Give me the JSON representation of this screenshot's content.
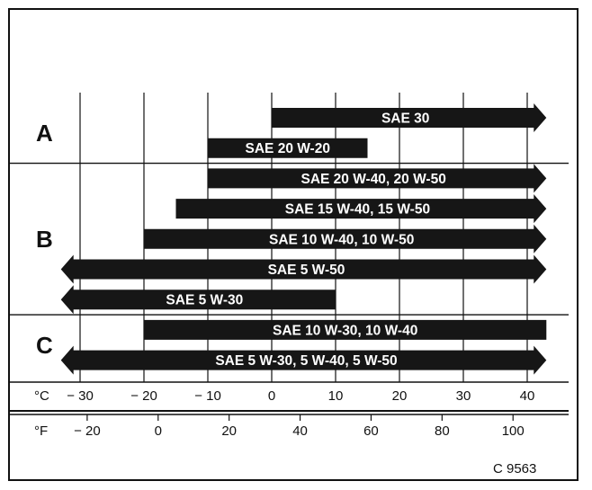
{
  "chart_data": {
    "type": "bar",
    "orientation": "horizontal-range",
    "x_unit": "°C",
    "x_unit_secondary": "°F",
    "xlim": [
      -35,
      45
    ],
    "celsius_ticks": [
      {
        "value": -30,
        "label": "− 30"
      },
      {
        "value": -20,
        "label": "− 20"
      },
      {
        "value": -10,
        "label": "− 10"
      },
      {
        "value": 0,
        "label": "0"
      },
      {
        "value": 10,
        "label": "10"
      },
      {
        "value": 20,
        "label": "20"
      },
      {
        "value": 30,
        "label": "30"
      },
      {
        "value": 40,
        "label": "40"
      }
    ],
    "fahrenheit_ticks": [
      {
        "value": -20,
        "label": "− 20"
      },
      {
        "value": 0,
        "label": "0"
      },
      {
        "value": 20,
        "label": "20"
      },
      {
        "value": 40,
        "label": "40"
      },
      {
        "value": 60,
        "label": "60"
      },
      {
        "value": 80,
        "label": "80"
      },
      {
        "value": 100,
        "label": "100"
      }
    ],
    "groups": [
      {
        "name": "A",
        "bars": [
          {
            "label": "SAE 30",
            "from": 0,
            "to": 43,
            "arrow_left": false,
            "arrow_right": true
          },
          {
            "label": "SAE 20 W-20",
            "from": -10,
            "to": 15,
            "arrow_left": false,
            "arrow_right": false
          }
        ]
      },
      {
        "name": "B",
        "bars": [
          {
            "label": "SAE 20 W-40, 20 W-50",
            "from": -10,
            "to": 43,
            "arrow_left": false,
            "arrow_right": true
          },
          {
            "label": "SAE 15 W-40, 15 W-50",
            "from": -15,
            "to": 43,
            "arrow_left": false,
            "arrow_right": true
          },
          {
            "label": "SAE 10 W-40, 10 W-50",
            "from": -20,
            "to": 43,
            "arrow_left": false,
            "arrow_right": true
          },
          {
            "label": "SAE 5 W-50",
            "from": -33,
            "to": 43,
            "arrow_left": true,
            "arrow_right": true
          },
          {
            "label": "SAE 5 W-30",
            "from": -33,
            "to": 10,
            "arrow_left": true,
            "arrow_right": false
          }
        ]
      },
      {
        "name": "C",
        "bars": [
          {
            "label": "SAE 10 W-30, 10 W-40",
            "from": -20,
            "to": 43,
            "arrow_left": false,
            "arrow_right": false
          },
          {
            "label": "SAE 5 W-30, 5 W-40, 5 W-50",
            "from": -33,
            "to": 43,
            "arrow_left": true,
            "arrow_right": true
          }
        ]
      }
    ],
    "grid": true,
    "figure_code": "C 9563"
  }
}
